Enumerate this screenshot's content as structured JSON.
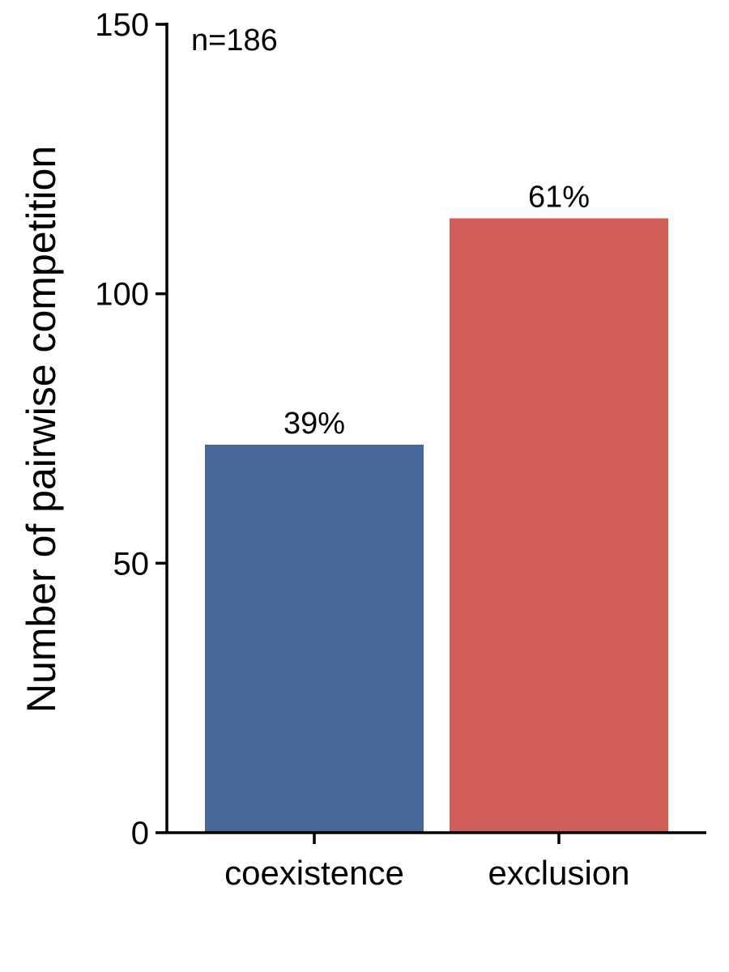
{
  "chart_data": {
    "type": "bar",
    "categories": [
      "coexistence",
      "exclusion"
    ],
    "values": [
      72,
      114
    ],
    "data_labels": [
      "39%",
      "61%"
    ],
    "colors": [
      "#466899",
      "#d15f59"
    ],
    "title": "",
    "xlabel": "",
    "ylabel": "Number of pairwise competition",
    "ylim": [
      0,
      150
    ],
    "yticks": [
      0,
      50,
      100,
      150
    ],
    "annotation": "n=186",
    "grid": false,
    "legend": "none"
  }
}
